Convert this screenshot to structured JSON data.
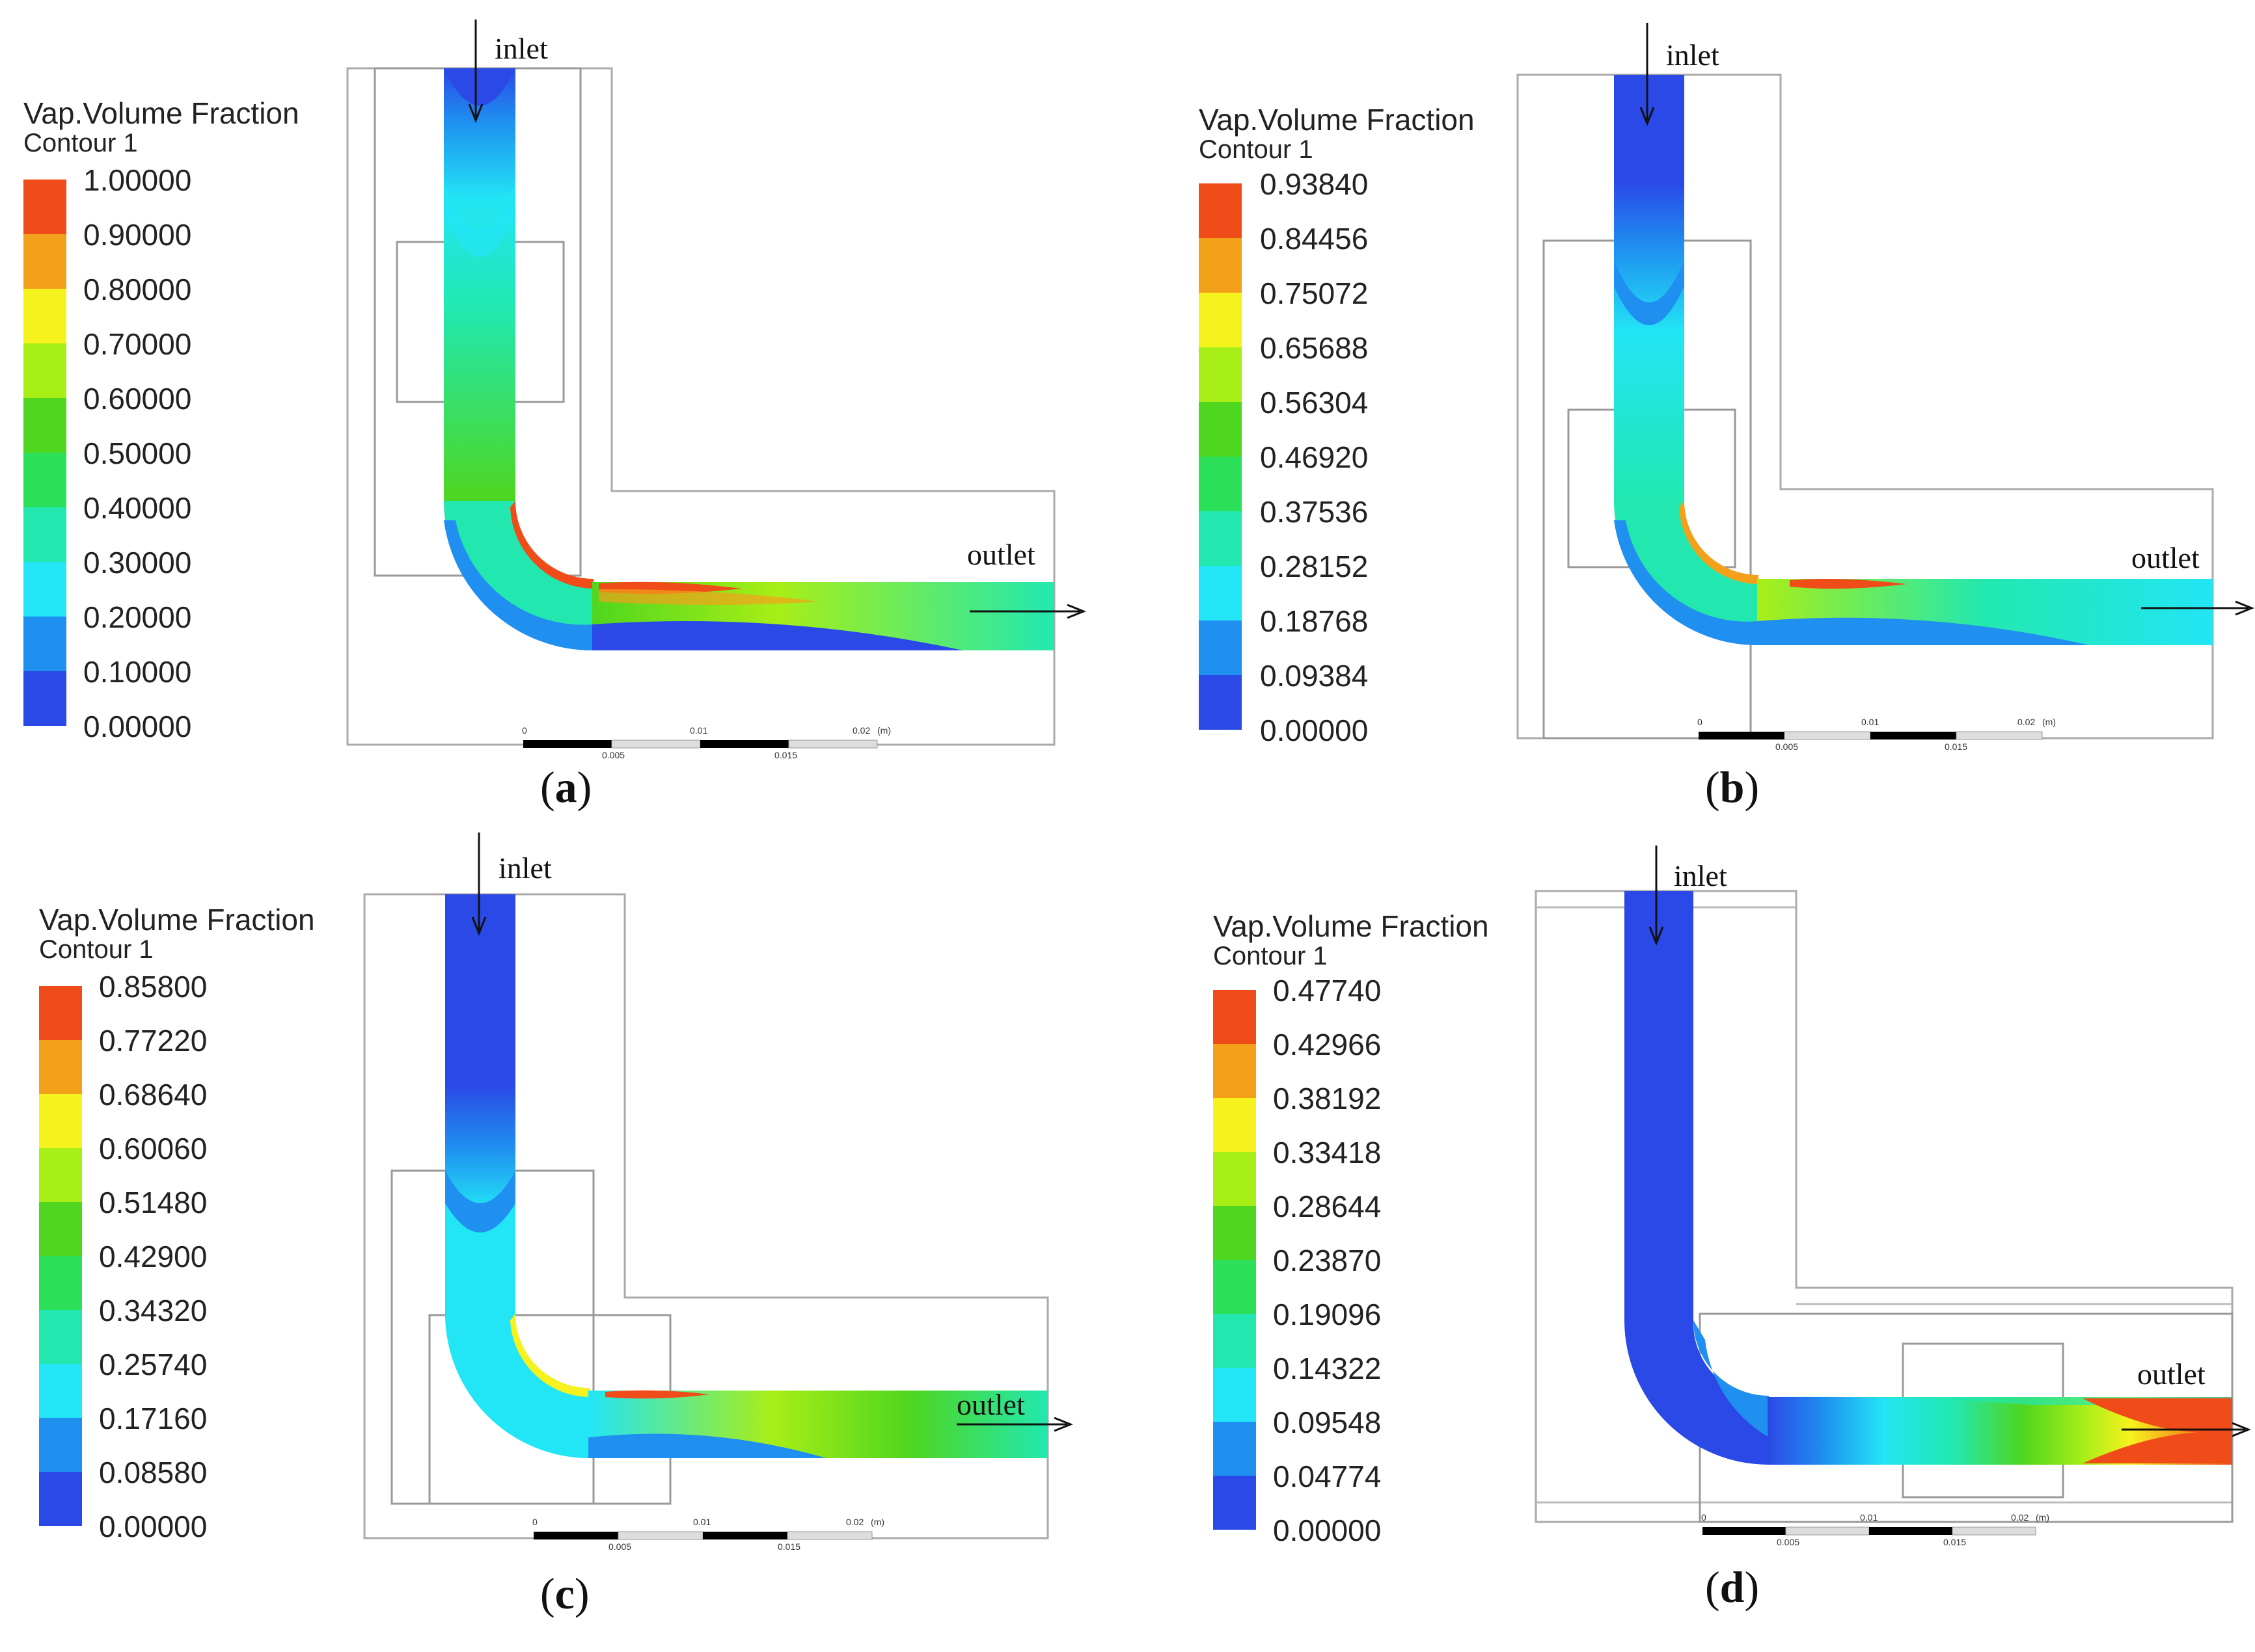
{
  "legend_title": "Vap.Volume Fraction",
  "legend_subtitle": "Contour 1",
  "colors": [
    "#2a49e6",
    "#1f8ff0",
    "#22e5f5",
    "#22e8b0",
    "#2ce05a",
    "#4fd61e",
    "#a8ee17",
    "#f6f21e",
    "#f3a11b",
    "#ef4c19"
  ],
  "labels": {
    "inlet": "inlet",
    "outlet": "outlet",
    "scale_0": "0",
    "scale_005": "0.005",
    "scale_01": "0.01",
    "scale_015": "0.015",
    "scale_02": "0.02",
    "scale_unit": "(m)"
  },
  "panels": [
    {
      "id": "a",
      "caption_open": "(",
      "caption_letter": "a",
      "caption_close": ")",
      "ticks": [
        "1.00000",
        "0.90000",
        "0.80000",
        "0.70000",
        "0.60000",
        "0.50000",
        "0.40000",
        "0.30000",
        "0.20000",
        "0.10000",
        "0.00000"
      ]
    },
    {
      "id": "b",
      "caption_open": "(",
      "caption_letter": "b",
      "caption_close": ")",
      "ticks": [
        "0.93840",
        "0.84456",
        "0.75072",
        "0.65688",
        "0.56304",
        "0.46920",
        "0.37536",
        "0.28152",
        "0.18768",
        "0.09384",
        "0.00000"
      ]
    },
    {
      "id": "c",
      "caption_open": "(",
      "caption_letter": "c",
      "caption_close": ")",
      "ticks": [
        "0.85800",
        "0.77220",
        "0.68640",
        "0.60060",
        "0.51480",
        "0.42900",
        "0.34320",
        "0.25740",
        "0.17160",
        "0.08580",
        "0.00000"
      ]
    },
    {
      "id": "d",
      "caption_open": "(",
      "caption_letter": "d",
      "caption_close": ")",
      "ticks": [
        "0.47740",
        "0.42966",
        "0.38192",
        "0.33418",
        "0.28644",
        "0.23870",
        "0.19096",
        "0.14322",
        "0.09548",
        "0.04774",
        "0.00000"
      ]
    }
  ]
}
